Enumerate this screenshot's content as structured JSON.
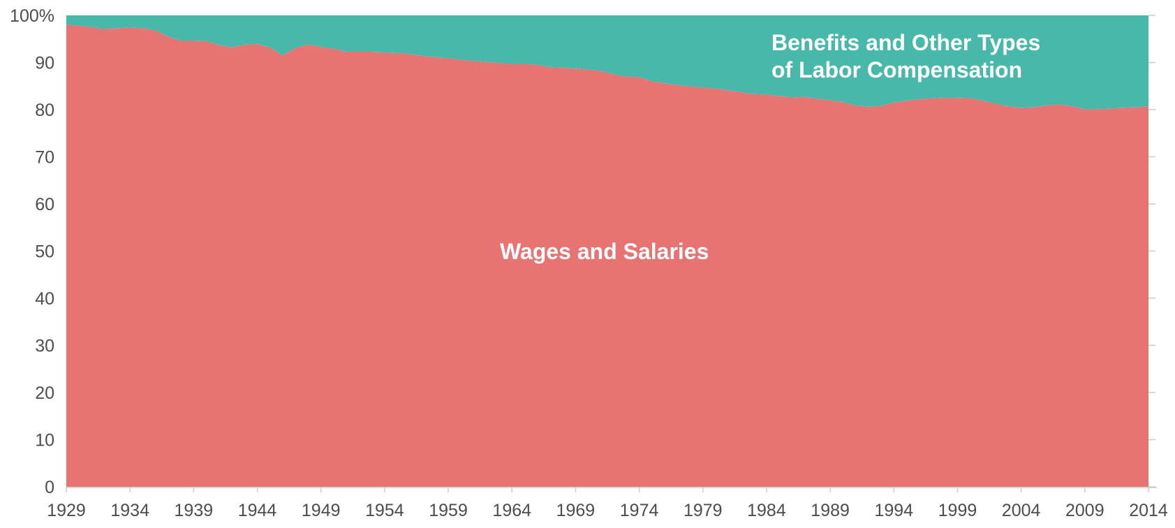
{
  "chart_data": {
    "type": "area",
    "stacked": true,
    "normalized_percent": true,
    "x": [
      1929,
      1930,
      1931,
      1932,
      1933,
      1934,
      1935,
      1936,
      1937,
      1938,
      1939,
      1940,
      1941,
      1942,
      1943,
      1944,
      1945,
      1946,
      1947,
      1948,
      1949,
      1950,
      1951,
      1952,
      1953,
      1954,
      1955,
      1956,
      1957,
      1958,
      1959,
      1960,
      1961,
      1962,
      1963,
      1964,
      1965,
      1966,
      1967,
      1968,
      1969,
      1970,
      1971,
      1972,
      1973,
      1974,
      1975,
      1976,
      1977,
      1978,
      1979,
      1980,
      1981,
      1982,
      1983,
      1984,
      1985,
      1986,
      1987,
      1988,
      1989,
      1990,
      1991,
      1992,
      1993,
      1994,
      1995,
      1996,
      1997,
      1998,
      1999,
      2000,
      2001,
      2002,
      2003,
      2004,
      2005,
      2006,
      2007,
      2008,
      2009,
      2010,
      2011,
      2012,
      2013,
      2014
    ],
    "series": [
      {
        "name": "Wages and Salaries",
        "color": "#e87373",
        "values": [
          98.0,
          97.8,
          97.5,
          97.1,
          97.3,
          97.4,
          97.3,
          96.8,
          95.5,
          94.6,
          94.6,
          94.5,
          93.7,
          93.2,
          93.8,
          93.9,
          93.2,
          91.5,
          93.1,
          93.8,
          93.3,
          92.9,
          92.3,
          92.3,
          92.3,
          92.1,
          92.0,
          91.8,
          91.4,
          91.1,
          90.9,
          90.6,
          90.3,
          90.1,
          89.9,
          89.7,
          89.7,
          89.5,
          89.0,
          88.9,
          88.7,
          88.5,
          88.2,
          87.5,
          87.0,
          86.9,
          86.0,
          85.6,
          85.2,
          84.9,
          84.7,
          84.5,
          84.1,
          83.7,
          83.3,
          83.2,
          82.9,
          82.6,
          82.7,
          82.3,
          82.0,
          81.6,
          80.9,
          80.6,
          80.8,
          81.5,
          81.9,
          82.2,
          82.4,
          82.5,
          82.5,
          82.4,
          81.9,
          81.3,
          80.7,
          80.4,
          80.5,
          80.9,
          81.1,
          80.7,
          80.1,
          80.1,
          80.2,
          80.4,
          80.5,
          80.7
        ]
      },
      {
        "name": "Benefits and Other Types of Labor Compensation",
        "color": "#48b8ab",
        "values": [
          2.0,
          2.2,
          2.5,
          2.9,
          2.7,
          2.6,
          2.7,
          3.2,
          4.5,
          5.4,
          5.4,
          5.5,
          6.3,
          6.8,
          6.2,
          6.1,
          6.8,
          8.5,
          6.9,
          6.2,
          6.7,
          7.1,
          7.7,
          7.7,
          7.7,
          7.9,
          8.0,
          8.2,
          8.6,
          8.9,
          9.1,
          9.4,
          9.7,
          9.9,
          10.1,
          10.3,
          10.3,
          10.5,
          11.0,
          11.1,
          11.3,
          11.5,
          11.8,
          12.5,
          13.0,
          13.1,
          14.0,
          14.4,
          14.8,
          15.1,
          15.3,
          15.5,
          15.9,
          16.3,
          16.7,
          16.8,
          17.1,
          17.4,
          17.3,
          17.7,
          18.0,
          18.4,
          19.1,
          19.4,
          19.2,
          18.5,
          18.1,
          17.8,
          17.6,
          17.5,
          17.5,
          17.6,
          18.1,
          18.7,
          19.3,
          19.6,
          19.5,
          19.1,
          18.9,
          19.3,
          19.9,
          19.9,
          19.8,
          19.6,
          19.5,
          19.3
        ]
      }
    ],
    "area_labels": {
      "wages": "Wages and Salaries",
      "benefits_line1": "Benefits and Other Types",
      "benefits_line2": "of Labor Compensation"
    },
    "x_ticks": [
      "1929",
      "1934",
      "1939",
      "1944",
      "1949",
      "1954",
      "1959",
      "1964",
      "1969",
      "1974",
      "1979",
      "1984",
      "1989",
      "1994",
      "1999",
      "2004",
      "2009",
      "2014"
    ],
    "y_ticks": [
      {
        "value": 0,
        "label": "0"
      },
      {
        "value": 10,
        "label": "10"
      },
      {
        "value": 20,
        "label": "20"
      },
      {
        "value": 30,
        "label": "30"
      },
      {
        "value": 40,
        "label": "40"
      },
      {
        "value": 50,
        "label": "50"
      },
      {
        "value": 60,
        "label": "60"
      },
      {
        "value": 70,
        "label": "70"
      },
      {
        "value": 80,
        "label": "80"
      },
      {
        "value": 90,
        "label": "90"
      },
      {
        "value": 100,
        "label": "100%"
      }
    ],
    "ylim": [
      0,
      100
    ],
    "xlim": [
      1929,
      2014
    ],
    "grid": false,
    "legend": "none",
    "title": "",
    "xlabel": "",
    "ylabel": ""
  }
}
